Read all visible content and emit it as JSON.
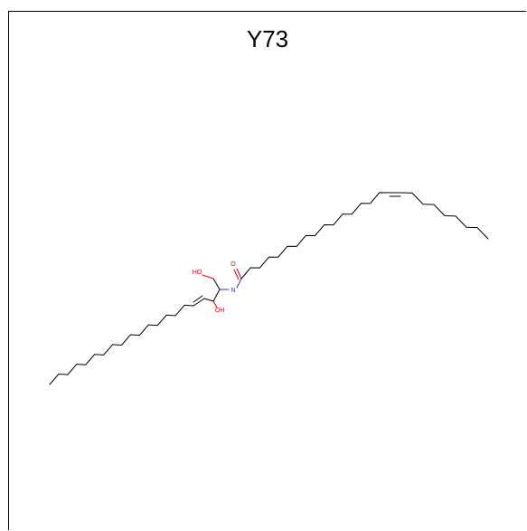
{
  "title": "Y73",
  "atoms": {
    "hydroxyl_primary": "HO",
    "hydroxyl_secondary": "OH",
    "amide_nitrogen": "N",
    "amide_oxygen": "O"
  },
  "colors": {
    "bond": "#000000",
    "oxygen": "#ff0000",
    "nitrogen": "#3333cc",
    "hydrogen_text": "#000000"
  }
}
